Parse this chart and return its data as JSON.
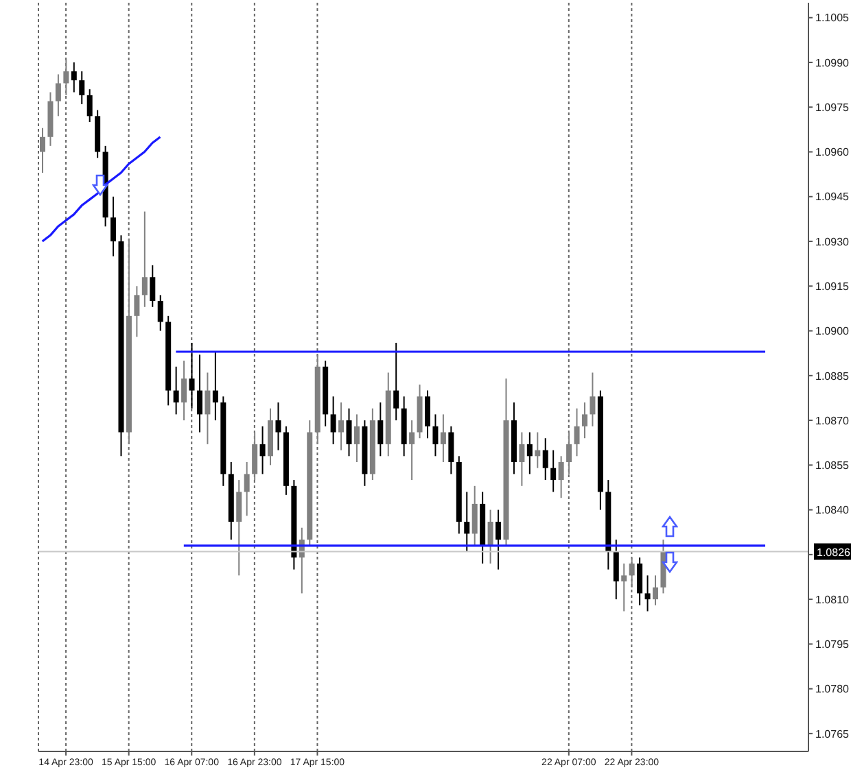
{
  "chart_data": {
    "type": "candlestick",
    "categories": [
      null,
      null,
      null,
      "14 Apr 23:00",
      null,
      null,
      null,
      null,
      null,
      null,
      null,
      "15 Apr 15:00",
      null,
      null,
      null,
      null,
      null,
      null,
      null,
      "16 Apr 07:00",
      null,
      null,
      null,
      null,
      null,
      null,
      null,
      "16 Apr 23:00",
      null,
      null,
      null,
      null,
      null,
      null,
      null,
      "17 Apr 15:00",
      null,
      null,
      null,
      null,
      null,
      null,
      null,
      null,
      null,
      null,
      null,
      null,
      null,
      null,
      null,
      null,
      null,
      null,
      null,
      null,
      null,
      null,
      null,
      null,
      null,
      null,
      null,
      null,
      null,
      null,
      null,
      "22 Apr 07:00",
      null,
      null,
      null,
      null,
      null,
      null,
      null,
      "22 Apr 23:00",
      null,
      null,
      null,
      null,
      null,
      null,
      null,
      null,
      null,
      null,
      null,
      null,
      null,
      null,
      null,
      null,
      null,
      null,
      null,
      null,
      null,
      null
    ],
    "ohlc": [
      [
        1.096,
        1.0968,
        1.0953,
        1.0965
      ],
      [
        1.0965,
        1.098,
        1.0962,
        1.0977
      ],
      [
        1.0977,
        1.0986,
        1.0972,
        1.0983
      ],
      [
        1.0983,
        1.0991,
        1.0979,
        1.0987
      ],
      [
        1.0987,
        1.099,
        1.098,
        1.0984
      ],
      [
        1.0984,
        1.0987,
        1.0976,
        1.0979
      ],
      [
        1.0979,
        1.0981,
        1.097,
        1.0972
      ],
      [
        1.0972,
        1.0974,
        1.0958,
        1.096
      ],
      [
        1.096,
        1.0962,
        1.0935,
        1.0938
      ],
      [
        1.0938,
        1.0945,
        1.0925,
        1.093
      ],
      [
        1.093,
        1.0932,
        1.0858,
        1.0866
      ],
      [
        1.0866,
        1.0931,
        1.0862,
        1.0905
      ],
      [
        1.0905,
        1.0915,
        1.0898,
        1.0912
      ],
      [
        1.0912,
        1.094,
        1.0908,
        1.0918
      ],
      [
        1.0918,
        1.0922,
        1.0908,
        1.091
      ],
      [
        1.091,
        1.0912,
        1.09,
        1.0903
      ],
      [
        1.0903,
        1.0905,
        1.0875,
        1.088
      ],
      [
        1.088,
        1.0888,
        1.0872,
        1.0876
      ],
      [
        1.0876,
        1.089,
        1.087,
        1.0884
      ],
      [
        1.0884,
        1.0896,
        1.0874,
        1.088
      ],
      [
        1.088,
        1.0892,
        1.0866,
        1.0872
      ],
      [
        1.0872,
        1.0886,
        1.0862,
        1.088
      ],
      [
        1.088,
        1.0893,
        1.087,
        1.0876
      ],
      [
        1.0876,
        1.0878,
        1.0848,
        1.0852
      ],
      [
        1.0852,
        1.0856,
        1.083,
        1.0836
      ],
      [
        1.0836,
        1.085,
        1.0818,
        1.0846
      ],
      [
        1.0846,
        1.0856,
        1.0838,
        1.0852
      ],
      [
        1.0852,
        1.0866,
        1.085,
        1.0862
      ],
      [
        1.0862,
        1.0868,
        1.0852,
        1.0858
      ],
      [
        1.0858,
        1.0874,
        1.0855,
        1.087
      ],
      [
        1.087,
        1.0876,
        1.086,
        1.0866
      ],
      [
        1.0866,
        1.0868,
        1.0845,
        1.0848
      ],
      [
        1.0848,
        1.085,
        1.082,
        1.0824
      ],
      [
        1.0824,
        1.0834,
        1.0812,
        1.083
      ],
      [
        1.083,
        1.087,
        1.0828,
        1.0866
      ],
      [
        1.0866,
        1.0892,
        1.0862,
        1.0888
      ],
      [
        1.0888,
        1.089,
        1.0868,
        1.0872
      ],
      [
        1.0872,
        1.0878,
        1.0862,
        1.0866
      ],
      [
        1.0866,
        1.0876,
        1.086,
        1.087
      ],
      [
        1.087,
        1.0874,
        1.0858,
        1.0862
      ],
      [
        1.0862,
        1.0872,
        1.0856,
        1.0868
      ],
      [
        1.0868,
        1.087,
        1.0848,
        1.0852
      ],
      [
        1.0852,
        1.0874,
        1.085,
        1.087
      ],
      [
        1.087,
        1.0876,
        1.0858,
        1.0862
      ],
      [
        1.0862,
        1.0886,
        1.0858,
        1.088
      ],
      [
        1.088,
        1.0896,
        1.087,
        1.0874
      ],
      [
        1.0874,
        1.0878,
        1.0858,
        1.0862
      ],
      [
        1.0862,
        1.087,
        1.085,
        1.0866
      ],
      [
        1.0866,
        1.0882,
        1.0864,
        1.0878
      ],
      [
        1.0878,
        1.088,
        1.0864,
        1.0868
      ],
      [
        1.0868,
        1.0872,
        1.0858,
        1.0862
      ],
      [
        1.0862,
        1.0872,
        1.0856,
        1.0866
      ],
      [
        1.0866,
        1.0868,
        1.0852,
        1.0856
      ],
      [
        1.0856,
        1.0858,
        1.0832,
        1.0836
      ],
      [
        1.0836,
        1.0846,
        1.0826,
        1.0832
      ],
      [
        1.0832,
        1.0848,
        1.0828,
        1.0842
      ],
      [
        1.0842,
        1.0846,
        1.0822,
        1.0828
      ],
      [
        1.0828,
        1.084,
        1.0822,
        1.0836
      ],
      [
        1.0836,
        1.084,
        1.082,
        1.083
      ],
      [
        1.083,
        1.0884,
        1.0828,
        1.087
      ],
      [
        1.087,
        1.0876,
        1.0852,
        1.0856
      ],
      [
        1.0856,
        1.0866,
        1.0848,
        1.0862
      ],
      [
        1.0862,
        1.0866,
        1.0852,
        1.0858
      ],
      [
        1.0858,
        1.0866,
        1.0854,
        1.086
      ],
      [
        1.086,
        1.0864,
        1.085,
        1.0854
      ],
      [
        1.0854,
        1.086,
        1.0846,
        1.085
      ],
      [
        1.085,
        1.0858,
        1.0844,
        1.0856
      ],
      [
        1.0856,
        1.0866,
        1.0852,
        1.0862
      ],
      [
        1.0862,
        1.0874,
        1.0858,
        1.0868
      ],
      [
        1.0868,
        1.0876,
        1.0864,
        1.0872
      ],
      [
        1.0872,
        1.0886,
        1.0868,
        1.0878
      ],
      [
        1.0878,
        1.088,
        1.084,
        1.0846
      ],
      [
        1.0846,
        1.085,
        1.082,
        1.0826
      ],
      [
        1.0826,
        1.083,
        1.081,
        1.0816
      ],
      [
        1.0816,
        1.0822,
        1.0806,
        1.0818
      ],
      [
        1.0818,
        1.0824,
        1.0814,
        1.0822
      ],
      [
        1.0822,
        1.0824,
        1.0808,
        1.0812
      ],
      [
        1.0812,
        1.0818,
        1.0806,
        1.081
      ],
      [
        1.081,
        1.0818,
        1.0808,
        1.0814
      ],
      [
        1.0814,
        1.083,
        1.0812,
        1.0826
      ],
      null,
      null,
      null,
      null,
      null,
      null,
      null,
      null,
      null,
      null,
      null,
      null,
      null,
      null,
      null,
      null,
      null,
      null
    ],
    "colors": [
      "#808080",
      "#808080",
      "#808080",
      "#808080",
      "#000000",
      "#000000",
      "#000000",
      "#000000",
      "#000000",
      "#000000",
      "#000000",
      "#808080",
      "#808080",
      "#808080",
      "#000000",
      "#000000",
      "#000000",
      "#000000",
      "#808080",
      "#000000",
      "#000000",
      "#808080",
      "#000000",
      "#000000",
      "#000000",
      "#808080",
      "#808080",
      "#808080",
      "#000000",
      "#808080",
      "#000000",
      "#000000",
      "#000000",
      "#808080",
      "#808080",
      "#808080",
      "#000000",
      "#000000",
      "#808080",
      "#000000",
      "#808080",
      "#000000",
      "#808080",
      "#000000",
      "#808080",
      "#000000",
      "#000000",
      "#808080",
      "#808080",
      "#000000",
      "#000000",
      "#808080",
      "#000000",
      "#000000",
      "#000000",
      "#808080",
      "#000000",
      "#808080",
      "#000000",
      "#808080",
      "#000000",
      "#808080",
      "#000000",
      "#808080",
      "#000000",
      "#000000",
      "#808080",
      "#808080",
      "#808080",
      "#808080",
      "#808080",
      "#000000",
      "#000000",
      "#000000",
      "#808080",
      "#808080",
      "#000000",
      "#000000",
      "#808080",
      "#808080",
      null,
      null,
      null,
      null,
      null,
      null,
      null,
      null,
      null,
      null,
      null,
      null,
      null,
      null,
      null,
      null,
      null,
      null
    ],
    "series": [
      {
        "type": "line",
        "color": "#1a1aff",
        "values": [
          1.093,
          1.0932,
          1.0935,
          1.0937,
          1.0939,
          1.0942,
          1.0944,
          1.0946,
          1.0949,
          1.0951,
          1.0953,
          1.0956,
          1.0958,
          1.096,
          1.0963,
          1.0965,
          null,
          null,
          null,
          null,
          null,
          null,
          null,
          null,
          null,
          null,
          null,
          null,
          null,
          null,
          null,
          null,
          null,
          null,
          null,
          null,
          null,
          null,
          null,
          null,
          null,
          null,
          null,
          null,
          null,
          null,
          null,
          null,
          null,
          null,
          null,
          null,
          null,
          null,
          null,
          null,
          null,
          null,
          null,
          null,
          null,
          null,
          null,
          null,
          null,
          null,
          null,
          null,
          null,
          null,
          null,
          null,
          null,
          null,
          null,
          null,
          null,
          null,
          null,
          null,
          null,
          null,
          null,
          null,
          null,
          null,
          null,
          null,
          null,
          null,
          null,
          null,
          null,
          null,
          null,
          null,
          null,
          null
        ]
      },
      {
        "type": "line",
        "color": "#1a1aff",
        "values": [
          null,
          null,
          null,
          null,
          null,
          null,
          null,
          null,
          null,
          null,
          null,
          null,
          null,
          null,
          null,
          null,
          null,
          1.0893,
          1.0893,
          1.0893,
          1.0893,
          1.0893,
          1.0893,
          1.0893,
          1.0893,
          1.0893,
          1.0893,
          1.0893,
          1.0893,
          1.0893,
          1.0893,
          1.0893,
          1.0893,
          1.0893,
          1.0893,
          1.0893,
          1.0893,
          1.0893,
          1.0893,
          1.0893,
          1.0893,
          1.0893,
          1.0893,
          1.0893,
          1.0893,
          1.0893,
          1.0893,
          1.0893,
          1.0893,
          1.0893,
          1.0893,
          1.0893,
          1.0893,
          1.0893,
          1.0893,
          1.0893,
          1.0893,
          1.0893,
          1.0893,
          1.0893,
          1.0893,
          1.0893,
          1.0893,
          1.0893,
          1.0893,
          1.0893,
          1.0893,
          1.0893,
          1.0893,
          1.0893,
          1.0893,
          1.0893,
          1.0893,
          1.0893,
          1.0893,
          1.0893,
          1.0893,
          1.0893,
          1.0893,
          1.0893,
          1.0893,
          1.0893,
          1.0893,
          1.0893,
          1.0893,
          1.0893,
          1.0893,
          1.0893,
          1.0893,
          1.0893,
          1.0893,
          1.0893,
          1.0893,
          null,
          null,
          null,
          null,
          null
        ]
      },
      {
        "type": "line",
        "color": "#1a1aff",
        "values": [
          null,
          null,
          null,
          null,
          null,
          null,
          null,
          null,
          null,
          null,
          null,
          null,
          null,
          null,
          null,
          null,
          null,
          null,
          1.0828,
          1.0828,
          1.0828,
          1.0828,
          1.0828,
          1.0828,
          1.0828,
          1.0828,
          1.0828,
          1.0828,
          1.0828,
          1.0828,
          1.0828,
          1.0828,
          1.0828,
          1.0828,
          1.0828,
          1.0828,
          1.0828,
          1.0828,
          1.0828,
          1.0828,
          1.0828,
          1.0828,
          1.0828,
          1.0828,
          1.0828,
          1.0828,
          1.0828,
          1.0828,
          1.0828,
          1.0828,
          1.0828,
          1.0828,
          1.0828,
          1.0828,
          1.0828,
          1.0828,
          1.0828,
          1.0828,
          1.0828,
          1.0828,
          1.0828,
          1.0828,
          1.0828,
          1.0828,
          1.0828,
          1.0828,
          1.0828,
          1.0828,
          1.0828,
          1.0828,
          1.0828,
          1.0828,
          1.0828,
          1.0828,
          1.0828,
          1.0828,
          1.0828,
          1.0828,
          1.0828,
          1.0828,
          1.0828,
          1.0828,
          1.0828,
          1.0828,
          1.0828,
          1.0828,
          1.0828,
          1.0828,
          1.0828,
          1.0828,
          1.0828,
          1.0828,
          1.0828,
          null,
          null,
          null,
          null,
          null
        ]
      }
    ],
    "ref_lines": [
      {
        "axis": "y",
        "value": 1.0826,
        "label": "1.0826",
        "color": "#c8c8c8"
      }
    ],
    "ylim": [
      1.0759,
      1.101
    ],
    "yticks": [
      1.0765,
      {
        "value": 1.078,
        "label": "1.0780"
      },
      1.0795,
      {
        "value": 1.081,
        "label": "1.0810"
      },
      {
        "value": 1.0825,
        "label": null
      },
      {
        "value": 1.084,
        "label": "1.0840"
      },
      1.0855,
      {
        "value": 1.087,
        "label": "1.0870"
      },
      1.0885,
      {
        "value": 1.09,
        "label": "1.0900"
      },
      1.0915,
      {
        "value": 1.093,
        "label": "1.0930"
      },
      1.0945,
      {
        "value": 1.096,
        "label": "1.0960"
      },
      1.0975,
      {
        "value": 1.099,
        "label": "1.0990"
      },
      1.1005
    ],
    "grid": "x"
  }
}
